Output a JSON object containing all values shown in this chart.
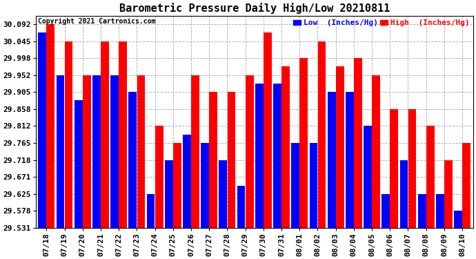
{
  "title": "Barometric Pressure Daily High/Low 20210811",
  "copyright": "Copyright 2021 Cartronics.com",
  "legend_low": "Low  (Inches/Hg)",
  "legend_high": "High  (Inches/Hg)",
  "categories": [
    "07/18",
    "07/19",
    "07/20",
    "07/21",
    "07/22",
    "07/23",
    "07/24",
    "07/25",
    "07/26",
    "07/27",
    "07/28",
    "07/29",
    "07/30",
    "07/31",
    "08/01",
    "08/02",
    "08/03",
    "08/04",
    "08/05",
    "08/06",
    "08/07",
    "08/08",
    "08/09",
    "08/10"
  ],
  "high_values": [
    30.092,
    30.045,
    29.952,
    30.045,
    30.045,
    29.952,
    29.812,
    29.765,
    29.952,
    29.905,
    29.905,
    29.952,
    30.068,
    29.975,
    29.998,
    30.045,
    29.975,
    29.998,
    29.952,
    29.858,
    29.858,
    29.812,
    29.718,
    29.765
  ],
  "low_values": [
    30.068,
    29.952,
    29.882,
    29.952,
    29.952,
    29.905,
    29.625,
    29.718,
    29.788,
    29.765,
    29.718,
    29.648,
    29.928,
    29.928,
    29.765,
    29.765,
    29.905,
    29.905,
    29.812,
    29.625,
    29.718,
    29.625,
    29.625,
    29.578
  ],
  "ylim_min": 29.531,
  "ylim_max": 30.115,
  "yticks": [
    29.531,
    29.578,
    29.625,
    29.671,
    29.718,
    29.765,
    29.812,
    29.858,
    29.905,
    29.952,
    29.998,
    30.045,
    30.092
  ],
  "color_high": "#ff0000",
  "color_low": "#0000ff",
  "color_bg": "#ffffff",
  "color_grid": "#aaaaaa",
  "title_fontsize": 11,
  "copyright_fontsize": 7,
  "tick_fontsize": 8,
  "legend_fontsize": 8
}
